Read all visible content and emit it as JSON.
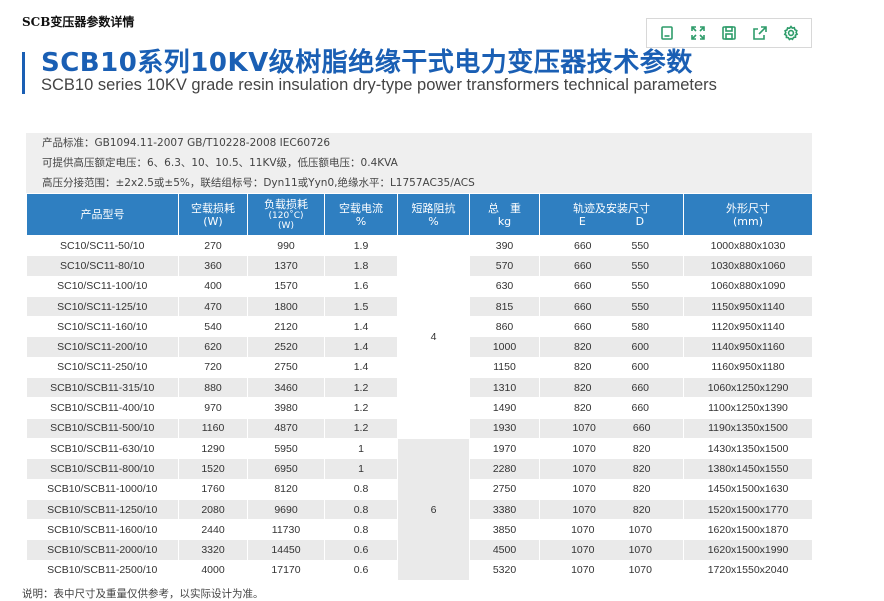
{
  "page_label": "SCB变压器参数详情",
  "toolbar": {
    "buttons": [
      {
        "icon": "copy-icon"
      },
      {
        "icon": "expand-icon"
      },
      {
        "icon": "save-icon"
      },
      {
        "icon": "share-icon"
      },
      {
        "icon": "settings-icon"
      }
    ],
    "color": "#2e9c6a"
  },
  "title_cn": "SCB10系列10KV级树脂绝缘干式电力变压器技术参数",
  "title_en": "SCB10 series 10KV grade resin insulation dry-type power transformers technical parameters",
  "info_lines": [
    "产品标准：GB1094.11-2007 GB/T10228-2008 IEC60726",
    "可提供高压额定电压：6、6.3、10、10.5、11KV级，低压额电压：0.4KVA",
    "高压分接范围：±2x2.5或±5%，联结组标号：Dyn11或Yyn0,绝缘水平：L1757AC35/ACS"
  ],
  "table": {
    "headers": {
      "model": "产品型号",
      "noload_loss": "空载损耗",
      "noload_loss_unit": "(W)",
      "load_loss": "负载损耗",
      "load_loss_temp": "(120˚C)",
      "load_loss_unit": "(W)",
      "noload_current": "空载电流",
      "noload_current_unit": "%",
      "impedance": "短路阻抗",
      "impedance_unit": "%",
      "weight": "总　重",
      "weight_unit": "kg",
      "track": "轨迹及安装尺寸",
      "track_e": "E",
      "track_d": "D",
      "dims": "外形尺寸",
      "dims_unit": "(mm)"
    },
    "impedance_groups": [
      "4",
      "6"
    ],
    "rows": [
      {
        "model": "SC10/SC11-50/10",
        "noload": "270",
        "load": "990",
        "current": "1.9",
        "weight": "390",
        "e": "660",
        "d": "550",
        "dims": "1000x880x1030"
      },
      {
        "model": "SC10/SC11-80/10",
        "noload": "360",
        "load": "1370",
        "current": "1.8",
        "weight": "570",
        "e": "660",
        "d": "550",
        "dims": "1030x880x1060"
      },
      {
        "model": "SC10/SC11-100/10",
        "noload": "400",
        "load": "1570",
        "current": "1.6",
        "weight": "630",
        "e": "660",
        "d": "550",
        "dims": "1060x880x1090"
      },
      {
        "model": "SC10/SC11-125/10",
        "noload": "470",
        "load": "1800",
        "current": "1.5",
        "weight": "815",
        "e": "660",
        "d": "550",
        "dims": "1150x950x1140"
      },
      {
        "model": "SC10/SC11-160/10",
        "noload": "540",
        "load": "2120",
        "current": "1.4",
        "weight": "860",
        "e": "660",
        "d": "580",
        "dims": "1120x950x1140"
      },
      {
        "model": "SC10/SC11-200/10",
        "noload": "620",
        "load": "2520",
        "current": "1.4",
        "weight": "1000",
        "e": "820",
        "d": "600",
        "dims": "1140x950x1160"
      },
      {
        "model": "SC10/SC11-250/10",
        "noload": "720",
        "load": "2750",
        "current": "1.4",
        "weight": "1150",
        "e": "820",
        "d": "600",
        "dims": "1160x950x1180"
      },
      {
        "model": "SCB10/SCB11-315/10",
        "noload": "880",
        "load": "3460",
        "current": "1.2",
        "weight": "1310",
        "e": "820",
        "d": "660",
        "dims": "1060x1250x1290"
      },
      {
        "model": "SCB10/SCB11-400/10",
        "noload": "970",
        "load": "3980",
        "current": "1.2",
        "weight": "1490",
        "e": "820",
        "d": "660",
        "dims": "1100x1250x1390"
      },
      {
        "model": "SCB10/SCB11-500/10",
        "noload": "1160",
        "load": "4870",
        "current": "1.2",
        "weight": "1930",
        "e": "1070",
        "d": "660",
        "dims": "1190x1350x1500"
      },
      {
        "model": "SCB10/SCB11-630/10",
        "noload": "1290",
        "load": "5950",
        "current": "1",
        "weight": "1970",
        "e": "1070",
        "d": "820",
        "dims": "1430x1350x1500"
      },
      {
        "model": "SCB10/SCB11-800/10",
        "noload": "1520",
        "load": "6950",
        "current": "1",
        "weight": "2280",
        "e": "1070",
        "d": "820",
        "dims": "1380x1450x1550"
      },
      {
        "model": "SCB10/SCB11-1000/10",
        "noload": "1760",
        "load": "8120",
        "current": "0.8",
        "weight": "2750",
        "e": "1070",
        "d": "820",
        "dims": "1450x1500x1630"
      },
      {
        "model": "SCB10/SCB11-1250/10",
        "noload": "2080",
        "load": "9690",
        "current": "0.8",
        "weight": "3380",
        "e": "1070",
        "d": "820",
        "dims": "1520x1500x1770"
      },
      {
        "model": "SCB10/SCB11-1600/10",
        "noload": "2440",
        "load": "11730",
        "current": "0.8",
        "weight": "3850",
        "e": "1070",
        "d": "1070",
        "dims": "1620x1500x1870"
      },
      {
        "model": "SCB10/SCB11-2000/10",
        "noload": "3320",
        "load": "14450",
        "current": "0.6",
        "weight": "4500",
        "e": "1070",
        "d": "1070",
        "dims": "1620x1500x1990"
      },
      {
        "model": "SCB10/SCB11-2500/10",
        "noload": "4000",
        "load": "17170",
        "current": "0.6",
        "weight": "5320",
        "e": "1070",
        "d": "1070",
        "dims": "1720x1550x2040"
      }
    ]
  },
  "note": "说明：表中尺寸及重量仅供参考，以实际设计为准。",
  "colors": {
    "title": "#1a5fb4",
    "header_bg": "#2f7fc1",
    "info_bg": "#efefef",
    "stripe": "#eaeaea"
  }
}
